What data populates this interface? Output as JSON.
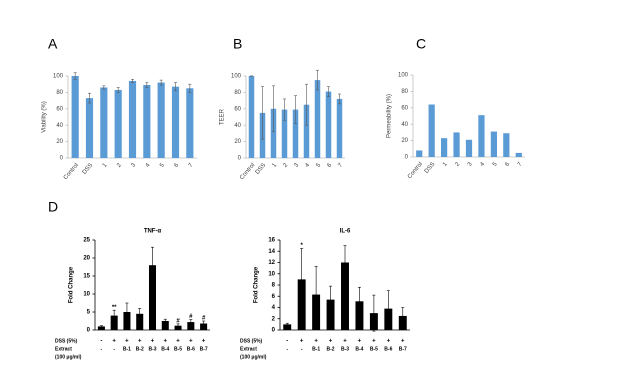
{
  "chart_data": [
    {
      "type": "bar",
      "panel": "A",
      "y_label": "Viability (%)",
      "color": "#5b9bd5",
      "categories": [
        "Control",
        "DSS",
        "1",
        "2",
        "3",
        "4",
        "5",
        "6",
        "7"
      ],
      "values": [
        100,
        73,
        86,
        83,
        94,
        89,
        92,
        87,
        85
      ],
      "errors": [
        4,
        6,
        2,
        3,
        2,
        3,
        3,
        5,
        5
      ],
      "ylim": [
        0,
        100
      ],
      "yticks": [
        0,
        20,
        40,
        60,
        80,
        100
      ]
    },
    {
      "type": "bar",
      "panel": "B",
      "y_label": "TEER",
      "color": "#5b9bd5",
      "categories": [
        "Control",
        "DSS",
        "1",
        "2",
        "3",
        "4",
        "5",
        "6",
        "7"
      ],
      "values": [
        100,
        55,
        60,
        59,
        59,
        65,
        95,
        81,
        72
      ],
      "errors": [
        0,
        32,
        28,
        13,
        17,
        25,
        12,
        6,
        6
      ],
      "ylim": [
        0,
        100
      ],
      "yticks": [
        0,
        20,
        40,
        60,
        80,
        100
      ]
    },
    {
      "type": "bar",
      "panel": "C",
      "y_label": "Permeability (%)",
      "color": "#5b9bd5",
      "categories": [
        "Control",
        "DSS",
        "1",
        "2",
        "3",
        "4",
        "5",
        "6",
        "7"
      ],
      "values": [
        8,
        64,
        23,
        30,
        21,
        51,
        31,
        29,
        5
      ],
      "ylim": [
        0,
        100
      ],
      "yticks": [
        0,
        20,
        40,
        60,
        80,
        100
      ]
    },
    {
      "type": "bar",
      "panel": "D",
      "title": "TNF-α",
      "y_label": "Fold Change",
      "color": "#000000",
      "categories": [
        "-",
        "-",
        "B-1",
        "B-2",
        "B-3",
        "B-4",
        "B-5",
        "B-6",
        "B-7"
      ],
      "dss_row": [
        "-",
        "+",
        "+",
        "+",
        "+",
        "+",
        "+",
        "+",
        "+"
      ],
      "row_labels": [
        "DSS (5%)",
        "Extract",
        "(100 μg/ml)"
      ],
      "values": [
        1,
        4,
        5,
        4.5,
        18,
        2.5,
        1.2,
        2.2,
        1.8
      ],
      "errors": [
        0.2,
        1.5,
        2.5,
        1.5,
        5,
        0.5,
        0.5,
        0.7,
        0.7
      ],
      "annotations": [
        {
          "index": 1,
          "text": "**"
        },
        {
          "index": 6,
          "text": "#"
        },
        {
          "index": 7,
          "text": "#"
        },
        {
          "index": 8,
          "text": "#"
        }
      ],
      "ylim": [
        0,
        25
      ],
      "yticks": [
        0,
        5,
        10,
        15,
        20,
        25
      ]
    },
    {
      "type": "bar",
      "title": "IL-6",
      "y_label": "Fold Change",
      "color": "#000000",
      "categories": [
        "-",
        "-",
        "B-1",
        "B-2",
        "B-3",
        "B-4",
        "B-5",
        "B-6",
        "B-7"
      ],
      "dss_row": [
        "-",
        "+",
        "+",
        "+",
        "+",
        "+",
        "+",
        "+",
        "+"
      ],
      "row_labels": [
        "DSS (5%)",
        "Extract",
        "(100 μg/ml)"
      ],
      "values": [
        1,
        9,
        6.3,
        5.4,
        12,
        5.1,
        3,
        3.8,
        2.5
      ],
      "errors": [
        0.2,
        5.5,
        5,
        2.4,
        3,
        2.5,
        3.2,
        3.2,
        1.5
      ],
      "annotations": [
        {
          "index": 1,
          "text": "*"
        }
      ],
      "ylim": [
        0,
        16
      ],
      "yticks": [
        0,
        2,
        4,
        6,
        8,
        10,
        12,
        14,
        16
      ]
    }
  ]
}
